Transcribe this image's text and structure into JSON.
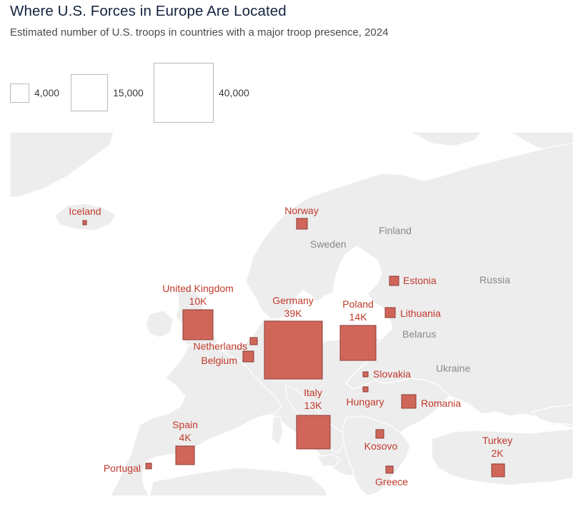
{
  "title": "Where U.S. Forces in Europe Are Located",
  "subtitle": "Estimated number of U.S. troops in countries with a major troop presence, 2024",
  "legend": [
    {
      "label": "4,000",
      "value": 4000
    },
    {
      "label": "15,000",
      "value": 15000
    },
    {
      "label": "40,000",
      "value": 40000
    }
  ],
  "colors": {
    "marker_fill": "#d0665a",
    "marker_stroke": "#8c3a32",
    "label": "#c0392b",
    "land": "#ededed",
    "border": "#ffffff",
    "sea": "#ffffff"
  },
  "country_labels": [
    {
      "name": "Sweden"
    },
    {
      "name": "Finland"
    },
    {
      "name": "Russia"
    },
    {
      "name": "Belarus"
    },
    {
      "name": "Ukraine"
    }
  ],
  "markers": [
    {
      "name": "Iceland",
      "value_label": ""
    },
    {
      "name": "Norway",
      "value_label": ""
    },
    {
      "name": "United Kingdom",
      "value_label": "10K"
    },
    {
      "name": "Germany",
      "value_label": "39K"
    },
    {
      "name": "Poland",
      "value_label": "14K"
    },
    {
      "name": "Estonia",
      "value_label": ""
    },
    {
      "name": "Lithuania",
      "value_label": ""
    },
    {
      "name": "Netherlands",
      "value_label": ""
    },
    {
      "name": "Belgium",
      "value_label": ""
    },
    {
      "name": "Slovakia",
      "value_label": ""
    },
    {
      "name": "Hungary",
      "value_label": ""
    },
    {
      "name": "Italy",
      "value_label": "13K"
    },
    {
      "name": "Romania",
      "value_label": ""
    },
    {
      "name": "Spain",
      "value_label": "4K"
    },
    {
      "name": "Kosovo",
      "value_label": ""
    },
    {
      "name": "Portugal",
      "value_label": ""
    },
    {
      "name": "Greece",
      "value_label": ""
    },
    {
      "name": "Turkey",
      "value_label": "2K"
    }
  ]
}
